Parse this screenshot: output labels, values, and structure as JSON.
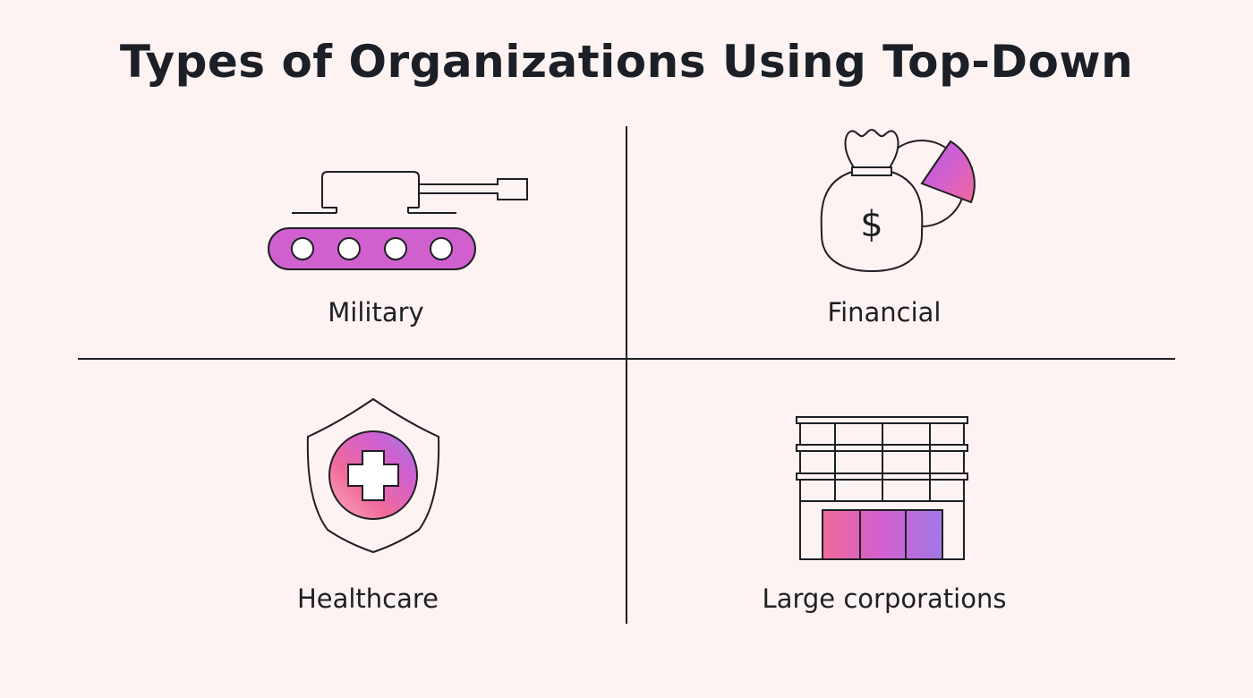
{
  "title": "Types of Organizations Using Top-Down",
  "items": [
    {
      "label": "Military",
      "icon": "tank-icon"
    },
    {
      "label": "Financial",
      "icon": "money-bag-pie-chart-icon"
    },
    {
      "label": "Healthcare",
      "icon": "medical-shield-icon"
    },
    {
      "label": "Large corporations",
      "icon": "office-building-icon"
    }
  ],
  "colors": {
    "background": "#fdf3f2",
    "line": "#1f1f24",
    "accent_pink": "#f06a9a",
    "accent_magenta": "#d160cf",
    "accent_violet": "#a07ae6"
  }
}
